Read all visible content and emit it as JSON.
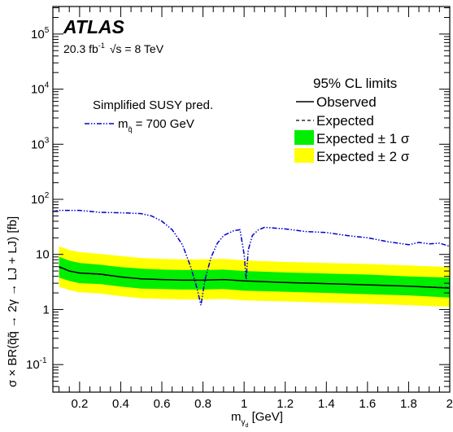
{
  "chart_data": {
    "type": "line",
    "experiment": "ATLAS",
    "luminosity_label": "20.3 fb",
    "luminosity_exp": "-1",
    "energy_label": "√s = 8 TeV",
    "xlabel_main": "m",
    "xlabel_sub": "γ",
    "xlabel_subsub": "d",
    "xlabel_unit": " [GeV]",
    "ylabel": "σ  × BR(q̃q̃ → 2γ  → LJ + LJ) [fb]",
    "ylabel_sub": "q̃q̃",
    "ylabel_sub2": "d",
    "xlim": [
      0.07,
      2.0
    ],
    "ylim_log10": [
      -1.5,
      5.5
    ],
    "yscale": "log",
    "x_ticks": [
      0.2,
      0.4,
      0.6,
      0.8,
      1.0,
      1.2,
      1.4,
      1.6,
      1.8,
      2.0
    ],
    "x_tick_labels": [
      "0.2",
      "0.4",
      "0.6",
      "0.8",
      "1",
      "1.2",
      "1.4",
      "1.6",
      "1.8",
      "2"
    ],
    "y_ticks": [
      {
        "base": "10",
        "exp": "-1",
        "value": 0.1
      },
      {
        "base": "1",
        "exp": "",
        "value": 1
      },
      {
        "base": "10",
        "exp": "",
        "value": 10
      },
      {
        "base": "10",
        "exp": "2",
        "value": 100
      },
      {
        "base": "10",
        "exp": "3",
        "value": 1000
      },
      {
        "base": "10",
        "exp": "4",
        "value": 10000
      },
      {
        "base": "10",
        "exp": "5",
        "value": 100000
      }
    ],
    "theory_title": "Simplified SUSY pred.",
    "limits_title": "95% CL limits",
    "legend": {
      "theory": "m",
      "theory_sub": "q̃",
      "theory_value": " = 700 GeV",
      "observed": "Observed",
      "expected": "Expected",
      "band1": "Expected ± 1 σ",
      "band2": "Expected ± 2 σ"
    },
    "colors": {
      "band1": "#00ee00",
      "band2": "#ffff00",
      "theory": "#0000cc",
      "observed": "#000000"
    },
    "x": [
      0.1,
      0.15,
      0.2,
      0.3,
      0.4,
      0.5,
      0.6,
      0.7,
      0.8,
      0.9,
      1.0,
      1.2,
      1.4,
      1.6,
      1.8,
      2.0
    ],
    "series": [
      {
        "name": "Observed",
        "values": [
          6.0,
          5.0,
          4.6,
          4.4,
          3.9,
          3.6,
          3.5,
          3.4,
          3.4,
          3.5,
          3.3,
          3.1,
          2.95,
          2.8,
          2.65,
          2.45
        ]
      },
      {
        "name": "Expected",
        "values": [
          5.8,
          5.0,
          4.6,
          4.3,
          3.9,
          3.6,
          3.5,
          3.4,
          3.4,
          3.5,
          3.3,
          3.1,
          2.95,
          2.8,
          2.65,
          2.5
        ]
      },
      {
        "name": "Expected ± 1 σ (upper)",
        "values": [
          9.0,
          7.7,
          7.0,
          6.5,
          5.9,
          5.5,
          5.3,
          5.2,
          5.2,
          5.3,
          5.0,
          4.7,
          4.5,
          4.3,
          4.0,
          3.8
        ]
      },
      {
        "name": "Expected ± 1 σ (lower)",
        "values": [
          3.8,
          3.3,
          3.0,
          2.9,
          2.6,
          2.4,
          2.35,
          2.3,
          2.3,
          2.35,
          2.2,
          2.1,
          2.0,
          1.9,
          1.8,
          1.65
        ]
      },
      {
        "name": "Expected ± 2 σ (upper)",
        "values": [
          14.0,
          12.0,
          11.0,
          10.2,
          9.3,
          8.6,
          8.3,
          8.1,
          8.1,
          8.3,
          7.8,
          7.3,
          7.0,
          6.7,
          6.3,
          5.9
        ]
      },
      {
        "name": "Expected ± 2 σ (lower)",
        "values": [
          2.6,
          2.25,
          2.05,
          1.95,
          1.75,
          1.6,
          1.55,
          1.52,
          1.52,
          1.55,
          1.47,
          1.4,
          1.33,
          1.27,
          1.2,
          1.12
        ]
      },
      {
        "name": "m_q̃ = 700 GeV",
        "x": [
          0.07,
          0.1,
          0.2,
          0.3,
          0.4,
          0.5,
          0.55,
          0.6,
          0.65,
          0.7,
          0.74,
          0.77,
          0.79,
          0.81,
          0.84,
          0.87,
          0.9,
          0.95,
          0.98,
          1.0,
          1.01,
          1.02,
          1.04,
          1.07,
          1.1,
          1.2,
          1.3,
          1.4,
          1.5,
          1.6,
          1.7,
          1.8,
          1.85,
          1.9,
          1.95,
          2.0
        ],
        "values": [
          60,
          63,
          63,
          58,
          57,
          55,
          50,
          40,
          28,
          15,
          6,
          2.5,
          1.2,
          3.5,
          9,
          16,
          22,
          27,
          28,
          10,
          3.5,
          12,
          22,
          28,
          31,
          29,
          26,
          25,
          22,
          20,
          17,
          15,
          16.5,
          15.5,
          16,
          14
        ]
      }
    ]
  }
}
